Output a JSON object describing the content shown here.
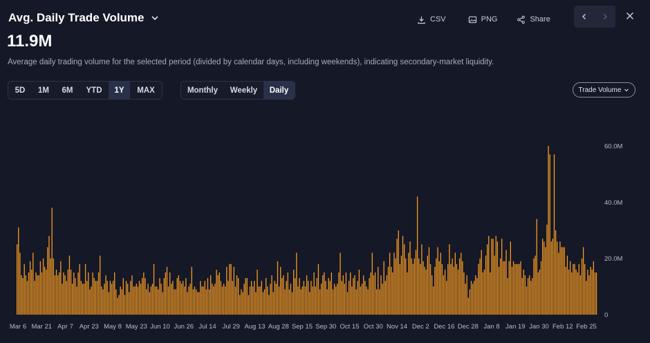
{
  "header": {
    "title": "Avg. Daily Trade Volume",
    "value": "11.9M",
    "description": "Average daily trading volume for the selected period (divided by calendar days, including weekends), indicating secondary-market liquidity."
  },
  "toolbar": {
    "csv_label": "CSV",
    "png_label": "PNG",
    "share_label": "Share",
    "prev_icon": "chevron-left-icon",
    "next_icon": "chevron-right-icon",
    "close_icon": "close-icon"
  },
  "range_tabs": {
    "items": [
      "5D",
      "1M",
      "6M",
      "YTD",
      "1Y",
      "MAX"
    ],
    "active": "1Y"
  },
  "interval_tabs": {
    "items": [
      "Monthly",
      "Weekly",
      "Daily"
    ],
    "active": "Daily"
  },
  "metric_select": {
    "label": "Trade Volume"
  },
  "colors": {
    "background": "#151826",
    "bar": "#f59a23",
    "active_tab": "#293049"
  },
  "chart_data": {
    "type": "bar",
    "title": "",
    "xlabel": "",
    "ylabel": "",
    "ylim": [
      0,
      60000000
    ],
    "yticks": [
      "0",
      "20.0M",
      "40.0M",
      "60.0M"
    ],
    "ytick_values": [
      0,
      20000000,
      40000000,
      60000000
    ],
    "axis_position": "right",
    "grid": false,
    "x_tick_labels": [
      "Mar 6",
      "Mar 21",
      "Apr 7",
      "Apr 23",
      "May 8",
      "May 23",
      "Jun 10",
      "Jun 26",
      "Jul 14",
      "Jul 29",
      "Aug 13",
      "Aug 28",
      "Sep 15",
      "Sep 30",
      "Oct 15",
      "Oct 30",
      "Nov 14",
      "Dec 2",
      "Dec 16",
      "Dec 28",
      "Jan 8",
      "Jan 19",
      "Jan 30",
      "Feb 12",
      "Feb 25"
    ],
    "series": [
      {
        "values": [
          25,
          31,
          22,
          14,
          13,
          18,
          14,
          12,
          15,
          19,
          16,
          22,
          12,
          15,
          14,
          14,
          19,
          15,
          20,
          17,
          16,
          24,
          28,
          20,
          38,
          20,
          14,
          16,
          14,
          15,
          19,
          11,
          15,
          14,
          12,
          16,
          21,
          16,
          11,
          15,
          13,
          10,
          15,
          18,
          12,
          11,
          11,
          18,
          12,
          15,
          9,
          10,
          15,
          13,
          12,
          12,
          15,
          21,
          10,
          9,
          11,
          14,
          12,
          8,
          12,
          11,
          12,
          15,
          9,
          6,
          7,
          10,
          9,
          13,
          7,
          12,
          11,
          8,
          12,
          14,
          10,
          10,
          11,
          10,
          12,
          11,
          13,
          15,
          13,
          9,
          11,
          8,
          10,
          11,
          18,
          10,
          10,
          9,
          13,
          11,
          8,
          13,
          15,
          17,
          10,
          15,
          11,
          12,
          9,
          9,
          13,
          14,
          12,
          11,
          12,
          10,
          13,
          8,
          10,
          11,
          17,
          9,
          10,
          9,
          8,
          8,
          12,
          10,
          10,
          12,
          9,
          13,
          9,
          14,
          11,
          10,
          11,
          16,
          14,
          15,
          12,
          10,
          11,
          10,
          17,
          12,
          18,
          18,
          12,
          17,
          10,
          14,
          13,
          7,
          9,
          8,
          11,
          13,
          13,
          7,
          10,
          12,
          10,
          12,
          8,
          16,
          10,
          10,
          12,
          8,
          9,
          13,
          10,
          7,
          11,
          14,
          8,
          12,
          11,
          19,
          10,
          17,
          13,
          14,
          9,
          12,
          15,
          9,
          11,
          8,
          16,
          13,
          22,
          10,
          13,
          9,
          10,
          12,
          10,
          14,
          12,
          8,
          12,
          10,
          15,
          10,
          13,
          18,
          9,
          11,
          14,
          15,
          12,
          9,
          13,
          12,
          15,
          9,
          11,
          10,
          11,
          15,
          22,
          12,
          14,
          11,
          15,
          8,
          12,
          15,
          10,
          13,
          14,
          9,
          12,
          16,
          10,
          11,
          14,
          12,
          10,
          9,
          13,
          15,
          22,
          14,
          15,
          9,
          17,
          9,
          14,
          11,
          19,
          12,
          14,
          17,
          22,
          17,
          15,
          22,
          20,
          27,
          30,
          18,
          21,
          28,
          25,
          20,
          15,
          22,
          26,
          20,
          18,
          20,
          23,
          42,
          20,
          18,
          25,
          19,
          17,
          16,
          21,
          24,
          18,
          14,
          10,
          17,
          20,
          24,
          19,
          22,
          18,
          14,
          16,
          12,
          18,
          25,
          18,
          20,
          17,
          22,
          18,
          16,
          20,
          22,
          19,
          15,
          11,
          14,
          6,
          9,
          12,
          11,
          12,
          14,
          13,
          18,
          20,
          23,
          15,
          16,
          21,
          25,
          28,
          15,
          27,
          27,
          21,
          28,
          26,
          17,
          20,
          27,
          19,
          19,
          23,
          13,
          19,
          26,
          17,
          19,
          18,
          18,
          18,
          18,
          19,
          13,
          16,
          14,
          10,
          13,
          14,
          12,
          13,
          20,
          21,
          34,
          15,
          16,
          19,
          27,
          26,
          24,
          32,
          60,
          57,
          26,
          27,
          57,
          30,
          26,
          22,
          26,
          24,
          24,
          24,
          17,
          21,
          16,
          19,
          15,
          18,
          18,
          16,
          15,
          18,
          14,
          20,
          24,
          18,
          12,
          16,
          14,
          17,
          16,
          19,
          15,
          15
        ]
      }
    ]
  }
}
